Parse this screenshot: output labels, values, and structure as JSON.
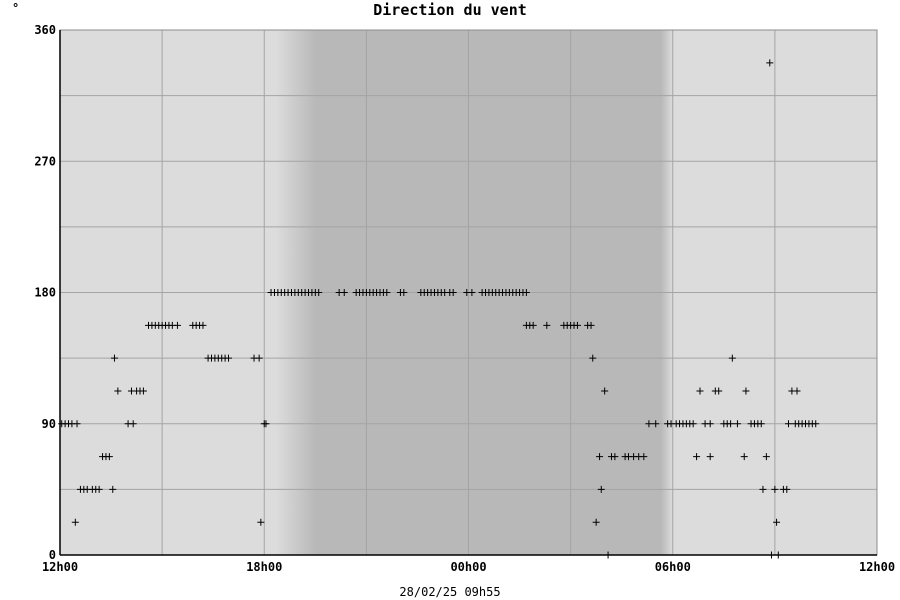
{
  "chart_data": {
    "type": "scatter",
    "title": "Direction du vent",
    "unit_label": "°",
    "footer": "28/02/25 09h55",
    "x_range_hours": [
      0,
      24
    ],
    "ylim": [
      0,
      360
    ],
    "y_ticks": [
      0,
      90,
      180,
      270,
      360
    ],
    "y_grid": [
      0,
      45,
      90,
      135,
      180,
      225,
      270,
      315,
      360
    ],
    "x_ticks": [
      {
        "hours": 0,
        "label": "12h00"
      },
      {
        "hours": 6,
        "label": "18h00"
      },
      {
        "hours": 12,
        "label": "00h00"
      },
      {
        "hours": 18,
        "label": "06h00"
      },
      {
        "hours": 24,
        "label": "12h00"
      }
    ],
    "x_grid_hours": [
      0,
      3,
      6,
      9,
      12,
      15,
      18,
      21,
      24
    ],
    "night_shading": {
      "start_hours": 7.0,
      "end_hours": 18.0
    },
    "grid": true,
    "marker": "+",
    "colors": {
      "plot_bg": "#dcdcdc",
      "night_bg": "#b8b8b8",
      "grid": "#a4a4a4",
      "marker": "#000000"
    },
    "points": [
      [
        0.05,
        90
      ],
      [
        0.15,
        90
      ],
      [
        0.25,
        90
      ],
      [
        0.35,
        90
      ],
      [
        0.5,
        90
      ],
      [
        0.45,
        22.5
      ],
      [
        0.6,
        45
      ],
      [
        0.7,
        45
      ],
      [
        0.8,
        45
      ],
      [
        0.95,
        45
      ],
      [
        1.05,
        45
      ],
      [
        1.15,
        45
      ],
      [
        1.25,
        67.5
      ],
      [
        1.35,
        67.5
      ],
      [
        1.45,
        67.5
      ],
      [
        1.55,
        45
      ],
      [
        1.6,
        135
      ],
      [
        1.7,
        112.5
      ],
      [
        2.0,
        90
      ],
      [
        2.15,
        90
      ],
      [
        2.1,
        112.5
      ],
      [
        2.25,
        112.5
      ],
      [
        2.35,
        112.5
      ],
      [
        2.45,
        112.5
      ],
      [
        2.6,
        157.5
      ],
      [
        2.7,
        157.5
      ],
      [
        2.8,
        157.5
      ],
      [
        2.9,
        157.5
      ],
      [
        3.0,
        157.5
      ],
      [
        3.1,
        157.5
      ],
      [
        3.2,
        157.5
      ],
      [
        3.3,
        157.5
      ],
      [
        3.45,
        157.5
      ],
      [
        3.9,
        157.5
      ],
      [
        4.0,
        157.5
      ],
      [
        4.1,
        157.5
      ],
      [
        4.2,
        157.5
      ],
      [
        4.35,
        135
      ],
      [
        4.45,
        135
      ],
      [
        4.55,
        135
      ],
      [
        4.65,
        135
      ],
      [
        4.75,
        135
      ],
      [
        4.85,
        135
      ],
      [
        4.95,
        135
      ],
      [
        5.7,
        135
      ],
      [
        5.85,
        135
      ],
      [
        5.9,
        22.5
      ],
      [
        6.0,
        90
      ],
      [
        6.05,
        90
      ],
      [
        6.2,
        180
      ],
      [
        6.3,
        180
      ],
      [
        6.4,
        180
      ],
      [
        6.5,
        180
      ],
      [
        6.6,
        180
      ],
      [
        6.7,
        180
      ],
      [
        6.8,
        180
      ],
      [
        6.9,
        180
      ],
      [
        7.0,
        180
      ],
      [
        7.1,
        180
      ],
      [
        7.2,
        180
      ],
      [
        7.3,
        180
      ],
      [
        7.4,
        180
      ],
      [
        7.5,
        180
      ],
      [
        7.6,
        180
      ],
      [
        8.2,
        180
      ],
      [
        8.35,
        180
      ],
      [
        8.7,
        180
      ],
      [
        8.8,
        180
      ],
      [
        8.9,
        180
      ],
      [
        9.0,
        180
      ],
      [
        9.1,
        180
      ],
      [
        9.2,
        180
      ],
      [
        9.3,
        180
      ],
      [
        9.4,
        180
      ],
      [
        9.5,
        180
      ],
      [
        9.6,
        180
      ],
      [
        10.0,
        180
      ],
      [
        10.1,
        180
      ],
      [
        10.6,
        180
      ],
      [
        10.7,
        180
      ],
      [
        10.8,
        180
      ],
      [
        10.9,
        180
      ],
      [
        11.0,
        180
      ],
      [
        11.1,
        180
      ],
      [
        11.2,
        180
      ],
      [
        11.3,
        180
      ],
      [
        11.45,
        180
      ],
      [
        11.55,
        180
      ],
      [
        11.95,
        180
      ],
      [
        12.1,
        180
      ],
      [
        12.4,
        180
      ],
      [
        12.5,
        180
      ],
      [
        12.6,
        180
      ],
      [
        12.7,
        180
      ],
      [
        12.8,
        180
      ],
      [
        12.9,
        180
      ],
      [
        13.0,
        180
      ],
      [
        13.1,
        180
      ],
      [
        13.2,
        180
      ],
      [
        13.3,
        180
      ],
      [
        13.4,
        180
      ],
      [
        13.5,
        180
      ],
      [
        13.6,
        180
      ],
      [
        13.7,
        180
      ],
      [
        13.7,
        157.5
      ],
      [
        13.8,
        157.5
      ],
      [
        13.9,
        157.5
      ],
      [
        14.3,
        157.5
      ],
      [
        14.8,
        157.5
      ],
      [
        14.9,
        157.5
      ],
      [
        15.0,
        157.5
      ],
      [
        15.1,
        157.5
      ],
      [
        15.2,
        157.5
      ],
      [
        15.5,
        157.5
      ],
      [
        15.6,
        157.5
      ],
      [
        15.65,
        135
      ],
      [
        15.75,
        22.5
      ],
      [
        15.85,
        67.5
      ],
      [
        15.9,
        45
      ],
      [
        16.0,
        112.5
      ],
      [
        16.1,
        0
      ],
      [
        16.2,
        67.5
      ],
      [
        16.3,
        67.5
      ],
      [
        16.6,
        67.5
      ],
      [
        16.7,
        67.5
      ],
      [
        16.85,
        67.5
      ],
      [
        17.0,
        67.5
      ],
      [
        17.15,
        67.5
      ],
      [
        17.3,
        90
      ],
      [
        17.5,
        90
      ],
      [
        17.85,
        90
      ],
      [
        17.95,
        90
      ],
      [
        18.1,
        90
      ],
      [
        18.2,
        90
      ],
      [
        18.3,
        90
      ],
      [
        18.4,
        90
      ],
      [
        18.5,
        90
      ],
      [
        18.6,
        90
      ],
      [
        18.7,
        67.5
      ],
      [
        18.8,
        112.5
      ],
      [
        18.95,
        90
      ],
      [
        19.1,
        90
      ],
      [
        19.1,
        67.5
      ],
      [
        19.25,
        112.5
      ],
      [
        19.35,
        112.5
      ],
      [
        19.5,
        90
      ],
      [
        19.6,
        90
      ],
      [
        19.7,
        90
      ],
      [
        19.9,
        90
      ],
      [
        19.75,
        135
      ],
      [
        20.1,
        67.5
      ],
      [
        20.15,
        112.5
      ],
      [
        20.3,
        90
      ],
      [
        20.4,
        90
      ],
      [
        20.5,
        90
      ],
      [
        20.6,
        90
      ],
      [
        20.65,
        45
      ],
      [
        20.75,
        67.5
      ],
      [
        20.85,
        337.5
      ],
      [
        20.9,
        0
      ],
      [
        21.0,
        45
      ],
      [
        21.05,
        22.5
      ],
      [
        21.1,
        0
      ],
      [
        21.25,
        45
      ],
      [
        21.35,
        45
      ],
      [
        21.4,
        90
      ],
      [
        21.5,
        112.5
      ],
      [
        21.6,
        90
      ],
      [
        21.65,
        112.5
      ],
      [
        21.7,
        90
      ],
      [
        21.8,
        90
      ],
      [
        21.9,
        90
      ],
      [
        22.0,
        90
      ],
      [
        22.1,
        90
      ],
      [
        22.2,
        90
      ]
    ]
  }
}
